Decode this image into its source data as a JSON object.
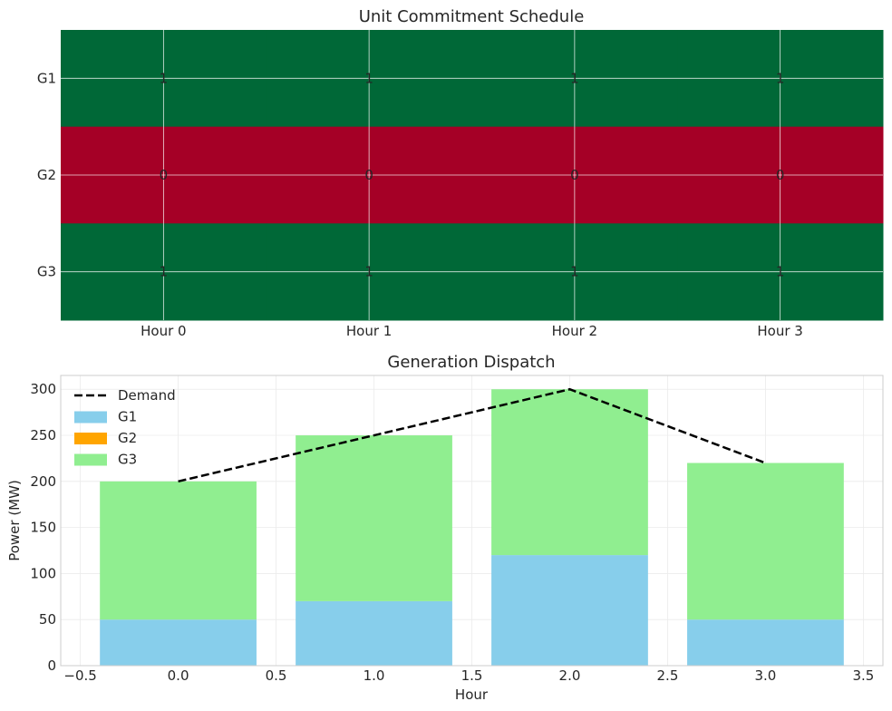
{
  "colors": {
    "on": "#006837",
    "off": "#a50026",
    "G1": "#87ceeb",
    "G2": "#ffa500",
    "G3": "#90ee90",
    "demand": "#000000",
    "grid": "#ebebeb",
    "frame": "#cccccc"
  },
  "chart_data": [
    {
      "type": "heatmap",
      "title": "Unit Commitment Schedule",
      "x_labels": [
        "Hour 0",
        "Hour 1",
        "Hour 2",
        "Hour 3"
      ],
      "y_labels": [
        "G1",
        "G2",
        "G3"
      ],
      "values": [
        [
          1,
          1,
          1,
          1
        ],
        [
          0,
          0,
          0,
          0
        ],
        [
          1,
          1,
          1,
          1
        ]
      ],
      "annotations": true,
      "grid": true
    },
    {
      "type": "bar",
      "title": "Generation Dispatch",
      "xlabel": "Hour",
      "ylabel": "Power (MW)",
      "x": [
        0,
        1,
        2,
        3
      ],
      "bar_width": 0.8,
      "stacked": true,
      "series": [
        {
          "name": "G1",
          "values": [
            50,
            70,
            120,
            50
          ]
        },
        {
          "name": "G2",
          "values": [
            0,
            0,
            0,
            0
          ]
        },
        {
          "name": "G3",
          "values": [
            150,
            180,
            180,
            170
          ]
        }
      ],
      "line_series": [
        {
          "name": "Demand",
          "style": "dashed",
          "values": [
            200,
            250,
            300,
            220
          ]
        }
      ],
      "xlim": [
        -0.6,
        3.6
      ],
      "ylim": [
        0,
        315
      ],
      "xticks": [
        -0.5,
        0.0,
        0.5,
        1.0,
        1.5,
        2.0,
        2.5,
        3.0,
        3.5
      ],
      "xtick_labels": [
        "−0.5",
        "0.0",
        "0.5",
        "1.0",
        "1.5",
        "2.0",
        "2.5",
        "3.0",
        "3.5"
      ],
      "yticks": [
        0,
        50,
        100,
        150,
        200,
        250,
        300
      ],
      "ytick_labels": [
        "0",
        "50",
        "100",
        "150",
        "200",
        "250",
        "300"
      ],
      "grid": true,
      "legend_position": "top-left",
      "legend": [
        "Demand",
        "G1",
        "G2",
        "G3"
      ]
    }
  ]
}
